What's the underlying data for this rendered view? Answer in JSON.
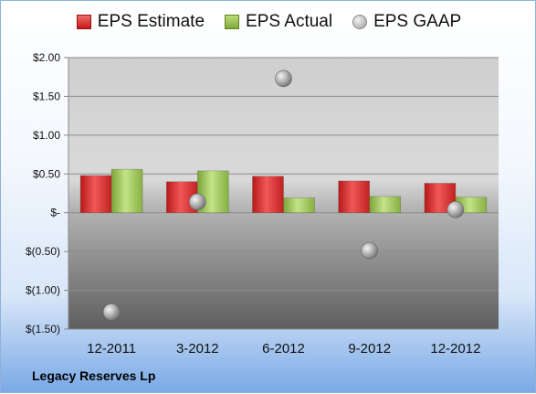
{
  "company": "Legacy Reserves Lp",
  "colors": {
    "estimate": "#d42a2a",
    "actual": "#8fbc48",
    "gaap": "#b0b0b0"
  },
  "chart_data": {
    "type": "bar",
    "categories": [
      "12-2011",
      "3-2012",
      "6-2012",
      "9-2012",
      "12-2012"
    ],
    "series": [
      {
        "name": "EPS Estimate",
        "type": "bar",
        "values": [
          0.48,
          0.4,
          0.47,
          0.41,
          0.38
        ]
      },
      {
        "name": "EPS Actual",
        "type": "bar",
        "values": [
          0.56,
          0.54,
          0.19,
          0.21,
          0.2
        ]
      },
      {
        "name": "EPS GAAP",
        "type": "scatter",
        "values": [
          -1.28,
          0.14,
          1.73,
          -0.49,
          0.04
        ]
      }
    ],
    "yticks": [
      2.0,
      1.5,
      1.0,
      0.5,
      0,
      -0.5,
      -1.0,
      -1.5
    ],
    "ytick_labels": [
      "$2.00",
      "$1.50",
      "$1.00",
      "$0.50",
      "$-",
      "$(0.50)",
      "$(1.00)",
      "$(1.50)"
    ],
    "ylim": [
      -1.5,
      2.0
    ],
    "grid": true,
    "legend_position": "top"
  }
}
